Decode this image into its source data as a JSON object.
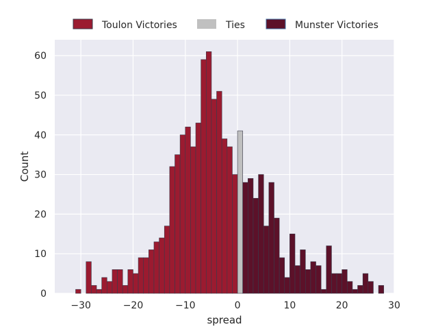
{
  "chart_data": {
    "type": "bar",
    "subtype": "histogram",
    "title": "",
    "xlabel": "spread",
    "ylabel": "Count",
    "xlim": [
      -35,
      30
    ],
    "ylim": [
      0,
      64
    ],
    "xticks": [
      -30,
      -20,
      -10,
      0,
      10,
      20,
      30
    ],
    "xtick_labels": [
      "−30",
      "−20",
      "−10",
      "0",
      "10",
      "20",
      "30"
    ],
    "yticks": [
      0,
      10,
      20,
      30,
      40,
      50,
      60
    ],
    "ytick_labels": [
      "0",
      "10",
      "20",
      "30",
      "40",
      "50",
      "60"
    ],
    "bin_width": 1,
    "grid": true,
    "legend_position": "top-center",
    "background_color": "#eaeaf2",
    "series": [
      {
        "name": "Toulon Victories",
        "color": "#9b1b30",
        "edge_color": "#3a3a4a",
        "x": [
          -31,
          -30,
          -29,
          -28,
          -27,
          -26,
          -25,
          -24,
          -23,
          -22,
          -21,
          -20,
          -19,
          -18,
          -17,
          -16,
          -15,
          -14,
          -13,
          -12,
          -11,
          -10,
          -9,
          -8,
          -7,
          -6,
          -5,
          -4,
          -3,
          -2,
          -1
        ],
        "values": [
          1,
          0,
          8,
          2,
          1,
          4,
          3,
          6,
          6,
          2,
          6,
          5,
          9,
          9,
          11,
          13,
          14,
          17,
          32,
          35,
          40,
          42,
          37,
          43,
          59,
          61,
          49,
          51,
          39,
          37,
          30
        ]
      },
      {
        "name": "Ties",
        "color": "#c0c0c0",
        "edge_color": "#3a3a4a",
        "x": [
          0
        ],
        "values": [
          41
        ]
      },
      {
        "name": "Munster Victories",
        "color": "#5c1129",
        "edge_color": "#3a3a4a",
        "x": [
          1,
          2,
          3,
          4,
          5,
          6,
          7,
          8,
          9,
          10,
          11,
          12,
          13,
          14,
          15,
          16,
          17,
          18,
          19,
          20,
          21,
          22,
          23,
          24,
          25,
          26,
          27
        ],
        "values": [
          28,
          29,
          24,
          30,
          17,
          28,
          19,
          9,
          4,
          15,
          7,
          11,
          6,
          8,
          7,
          1,
          12,
          5,
          5,
          6,
          3,
          1,
          2,
          5,
          3,
          0,
          2
        ]
      }
    ]
  }
}
